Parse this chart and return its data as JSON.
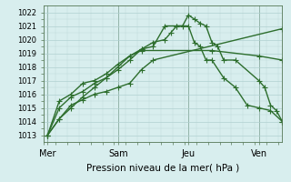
{
  "xlabel": "Pression niveau de la mer( hPa )",
  "bg_color": "#d8eeee",
  "grid_color": "#b0d0d0",
  "line_color": "#2d6e2d",
  "marker": "+",
  "markersize": 4,
  "linewidth": 1.0,
  "xtick_labels": [
    "Mer",
    "Sam",
    "Jeu",
    "Ven"
  ],
  "xtick_positions": [
    0,
    36,
    72,
    108
  ],
  "ylim": [
    1012.5,
    1022.5
  ],
  "xlim": [
    -2,
    120
  ],
  "ytick_values": [
    1013,
    1014,
    1015,
    1016,
    1017,
    1018,
    1019,
    1020,
    1021,
    1022
  ],
  "vlines": [
    0,
    36,
    72,
    108
  ],
  "series": [
    [
      1013.0,
      1014.2,
      1015.2,
      1015.6,
      1016.0,
      1016.2,
      1016.5,
      1016.8,
      1017.8,
      1018.5,
      1020.8
    ],
    [
      1013.0,
      1015.5,
      1016.0,
      1016.8,
      1017.0,
      1017.5,
      1018.2,
      1018.8,
      1019.2,
      1019.2,
      1018.8,
      1018.5
    ],
    [
      1013.0,
      1014.2,
      1015.0,
      1015.8,
      1016.5,
      1017.2,
      1018.0,
      1018.8,
      1019.3,
      1019.8,
      1020.0,
      1020.5,
      1021.0,
      1021.0,
      1021.8,
      1021.5,
      1021.2,
      1021.0,
      1019.8,
      1019.5,
      1018.5,
      1018.5,
      1017.0,
      1016.5,
      1015.2,
      1014.8,
      1014.0
    ],
    [
      1013.0,
      1015.0,
      1015.8,
      1016.2,
      1016.8,
      1017.2,
      1017.8,
      1018.5,
      1019.3,
      1019.5,
      1021.0,
      1021.0,
      1021.0,
      1019.8,
      1019.5,
      1018.5,
      1018.5,
      1017.2,
      1016.5,
      1015.2,
      1015.0,
      1014.8,
      1014.0
    ]
  ],
  "series_x": [
    [
      0,
      6,
      12,
      18,
      24,
      30,
      36,
      42,
      48,
      54,
      120
    ],
    [
      0,
      6,
      12,
      18,
      24,
      30,
      36,
      42,
      48,
      84,
      108,
      120
    ],
    [
      0,
      6,
      12,
      18,
      24,
      30,
      36,
      42,
      48,
      54,
      60,
      63,
      66,
      69,
      72,
      75,
      78,
      81,
      84,
      87,
      90,
      96,
      108,
      111,
      114,
      117,
      120
    ],
    [
      0,
      6,
      12,
      18,
      24,
      30,
      36,
      42,
      48,
      54,
      60,
      66,
      72,
      75,
      78,
      81,
      84,
      90,
      96,
      102,
      108,
      114,
      120
    ]
  ]
}
